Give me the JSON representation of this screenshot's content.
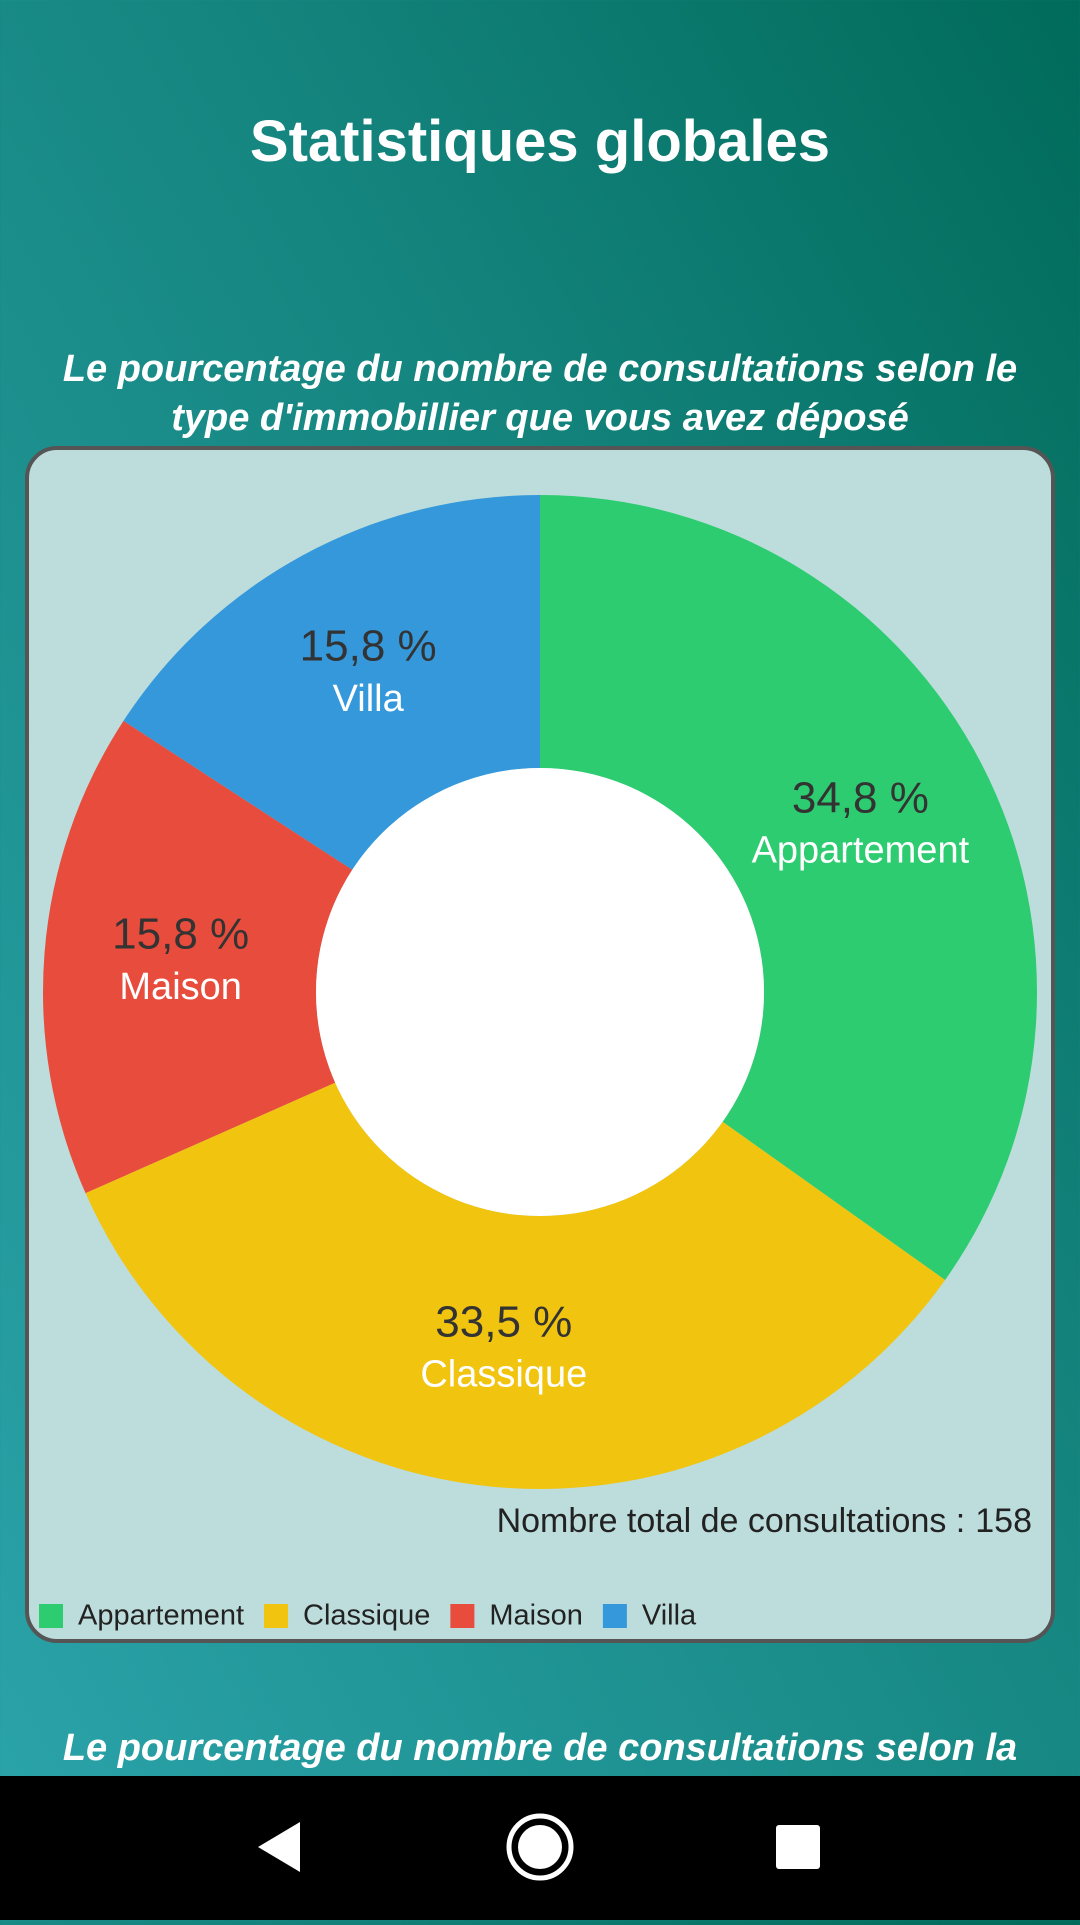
{
  "header": {
    "title": "Statistiques globales"
  },
  "chart_data": {
    "type": "donut",
    "title": "Le pourcentage du nombre de consultations selon le type d'immobillier que vous avez déposé",
    "categories": [
      "Appartement",
      "Classique",
      "Maison",
      "Villa"
    ],
    "values": [
      34.8,
      33.5,
      15.8,
      15.8
    ],
    "value_labels": [
      "34,8 %",
      "33,5 %",
      "15,8 %",
      "15,8 %"
    ],
    "colors": [
      "#2ecc71",
      "#f1c40f",
      "#e74c3c",
      "#3498db"
    ],
    "total_label": "Nombre total de consultations :",
    "total": 158,
    "legend": "bottom-left"
  },
  "next_section": {
    "title": "Le pourcentage du nombre de consultations selon la"
  }
}
